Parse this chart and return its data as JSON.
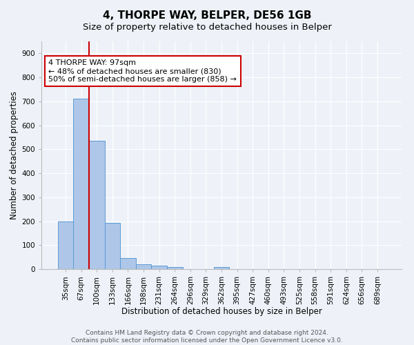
{
  "title": "4, THORPE WAY, BELPER, DE56 1GB",
  "subtitle": "Size of property relative to detached houses in Belper",
  "xlabel": "Distribution of detached houses by size in Belper",
  "ylabel": "Number of detached properties",
  "categories": [
    "35sqm",
    "67sqm",
    "100sqm",
    "133sqm",
    "166sqm",
    "198sqm",
    "231sqm",
    "264sqm",
    "296sqm",
    "329sqm",
    "362sqm",
    "395sqm",
    "427sqm",
    "460sqm",
    "493sqm",
    "525sqm",
    "558sqm",
    "591sqm",
    "624sqm",
    "656sqm",
    "689sqm"
  ],
  "values": [
    200,
    710,
    535,
    192,
    45,
    20,
    15,
    10,
    0,
    0,
    8,
    0,
    0,
    0,
    0,
    0,
    0,
    0,
    0,
    0,
    0
  ],
  "bar_color": "#aec6e8",
  "bar_edge_color": "#5b9bd5",
  "vline_x": 1.52,
  "vline_color": "#cc0000",
  "annotation_text": "4 THORPE WAY: 97sqm\n← 48% of detached houses are smaller (830)\n50% of semi-detached houses are larger (858) →",
  "annotation_box_color": "#ffffff",
  "annotation_box_edge": "#cc0000",
  "ylim": [
    0,
    950
  ],
  "yticks": [
    0,
    100,
    200,
    300,
    400,
    500,
    600,
    700,
    800,
    900
  ],
  "footer1": "Contains HM Land Registry data © Crown copyright and database right 2024.",
  "footer2": "Contains public sector information licensed under the Open Government Licence v3.0.",
  "background_color": "#eef2f8",
  "grid_color": "#ffffff",
  "title_fontsize": 11,
  "subtitle_fontsize": 9.5,
  "label_fontsize": 8.5,
  "tick_fontsize": 7.5,
  "annotation_fontsize": 8,
  "footer_fontsize": 6.5
}
